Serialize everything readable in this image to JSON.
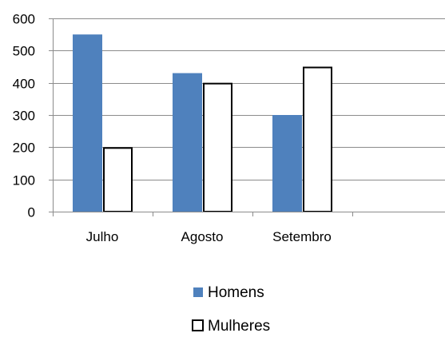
{
  "chart_data": {
    "type": "bar",
    "categories": [
      "Julho",
      "Agosto",
      "Setembro"
    ],
    "series": [
      {
        "name": "Homens",
        "values": [
          550,
          430,
          300
        ],
        "color": "#4F81BD",
        "style": "filled"
      },
      {
        "name": "Mulheres",
        "values": [
          200,
          400,
          450
        ],
        "color": "#FFFFFF",
        "style": "outlined"
      }
    ],
    "ylim": [
      0,
      600
    ],
    "yticks": [
      0,
      100,
      200,
      300,
      400,
      500,
      600
    ],
    "grid": true,
    "legend_position": "bottom",
    "title": "",
    "xlabel": "",
    "ylabel": ""
  }
}
